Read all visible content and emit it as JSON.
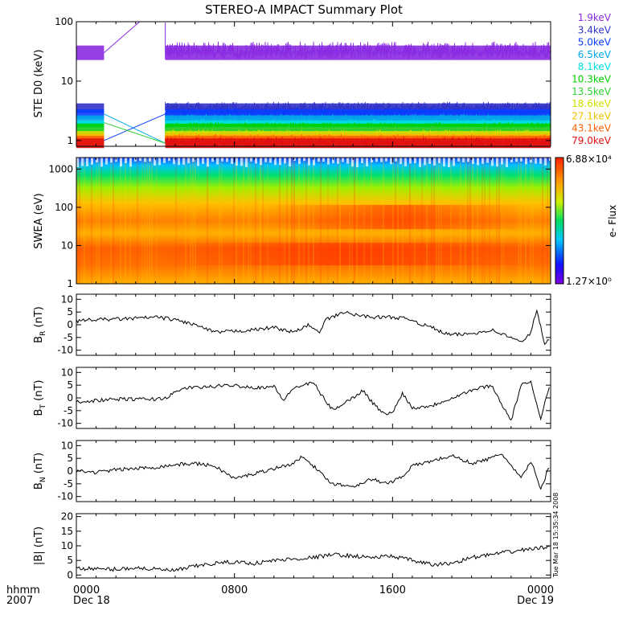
{
  "title": "STEREO-A IMPACT Summary Plot",
  "stamp": "Tue Mar 18 15:35:34 2008",
  "colors": {
    "trace": "#000000",
    "energy": [
      "#8a2be2",
      "#3232c8",
      "#0a3cff",
      "#00a8e8",
      "#00e0e0",
      "#00d000",
      "#30d030",
      "#d0e000",
      "#f0c000",
      "#ff6000",
      "#e01010"
    ]
  },
  "time_axis": {
    "hhmm_label": "hhmm",
    "year_label": "2007",
    "ticks": [
      {
        "t": 0,
        "label": "0000",
        "date": "Dec 18"
      },
      {
        "t": 8,
        "label": "0800",
        "date": ""
      },
      {
        "t": 16,
        "label": "1600",
        "date": ""
      },
      {
        "t": 24,
        "label": "0000",
        "date": "Dec 19"
      }
    ],
    "range_hours": [
      0,
      24
    ]
  },
  "chart_data": [
    {
      "type": "line",
      "panel": "ste",
      "ylabel": "STE D0 (keV)",
      "yscale": "log",
      "ylim": [
        0.8,
        100
      ],
      "yticks": [
        {
          "v": 1,
          "label": "1"
        },
        {
          "v": 10,
          "label": "10"
        },
        {
          "v": 100,
          "label": "100"
        }
      ],
      "legend": [
        {
          "label": "1.9keV",
          "color": "#8a2be2"
        },
        {
          "label": "3.4keV",
          "color": "#3232c8"
        },
        {
          "label": "5.0keV",
          "color": "#0a3cff"
        },
        {
          "label": "6.5keV",
          "color": "#00a8e8"
        },
        {
          "label": "8.1keV",
          "color": "#00e0e0"
        },
        {
          "label": "10.3keV",
          "color": "#00d000"
        },
        {
          "label": "13.5keV",
          "color": "#30d030"
        },
        {
          "label": "18.6keV",
          "color": "#d0e000"
        },
        {
          "label": "27.1keV",
          "color": "#f0c000"
        },
        {
          "label": "43.1keV",
          "color": "#ff6000"
        },
        {
          "label": "79.0keV",
          "color": "#e01010"
        }
      ],
      "gap_hours": [
        1.4,
        4.5
      ],
      "band_levels": [
        30,
        3.5,
        2.8,
        2.2,
        1.8,
        1.6,
        1.4,
        1.2,
        1.1,
        1.0,
        0.9
      ]
    },
    {
      "type": "heatmap",
      "panel": "swea",
      "ylabel": "SWEA (eV)",
      "yscale": "log",
      "ylim": [
        1,
        2000
      ],
      "yticks": [
        {
          "v": 1,
          "label": "1"
        },
        {
          "v": 10,
          "label": "10"
        },
        {
          "v": 100,
          "label": "100"
        },
        {
          "v": 1000,
          "label": "1000"
        }
      ],
      "colorbar": {
        "label": "e- Flux",
        "max_label": "6.88×10⁴",
        "min_label": "1.27×10⁰"
      }
    },
    {
      "type": "line",
      "panel": "br",
      "ylabel_main": "B",
      "ylabel_sub": "R",
      "ylabel_unit": " (nT)",
      "ylim": [
        -12,
        12
      ],
      "yticks": [
        {
          "v": -10,
          "label": "-10"
        },
        {
          "v": -5,
          "label": "-5"
        },
        {
          "v": 0,
          "label": "0"
        },
        {
          "v": 5,
          "label": "5"
        },
        {
          "v": 10,
          "label": "10"
        }
      ],
      "points": [
        [
          0,
          1.5
        ],
        [
          1,
          2
        ],
        [
          2,
          2.2
        ],
        [
          3,
          2.5
        ],
        [
          4,
          3
        ],
        [
          5,
          2
        ],
        [
          6,
          0
        ],
        [
          7,
          -3
        ],
        [
          8,
          -2.5
        ],
        [
          9,
          -2
        ],
        [
          10,
          -1
        ],
        [
          11,
          -3
        ],
        [
          11.8,
          0
        ],
        [
          12.3,
          -3.5
        ],
        [
          12.6,
          2
        ],
        [
          13,
          3
        ],
        [
          13.5,
          5
        ],
        [
          14,
          4
        ],
        [
          15,
          3
        ],
        [
          16,
          3
        ],
        [
          17,
          2
        ],
        [
          17.5,
          0
        ],
        [
          18,
          -1
        ],
        [
          18.5,
          -3
        ],
        [
          19,
          -4
        ],
        [
          20,
          -3.5
        ],
        [
          21,
          -2
        ],
        [
          22,
          -5
        ],
        [
          22.5,
          -7
        ],
        [
          23,
          -3
        ],
        [
          23.3,
          6
        ],
        [
          23.7,
          -8
        ],
        [
          24,
          -5
        ]
      ]
    },
    {
      "type": "line",
      "panel": "bt",
      "ylabel_main": "B",
      "ylabel_sub": "T",
      "ylabel_unit": " (nT)",
      "ylim": [
        -12,
        12
      ],
      "yticks": [
        {
          "v": -10,
          "label": "-10"
        },
        {
          "v": -5,
          "label": "-5"
        },
        {
          "v": 0,
          "label": "0"
        },
        {
          "v": 5,
          "label": "5"
        },
        {
          "v": 10,
          "label": "10"
        }
      ],
      "points": [
        [
          0,
          -1.5
        ],
        [
          1,
          -1
        ],
        [
          2,
          -0.5
        ],
        [
          3,
          -0.5
        ],
        [
          4,
          -0.5
        ],
        [
          4.5,
          0
        ],
        [
          5,
          2
        ],
        [
          5.5,
          4
        ],
        [
          6,
          4
        ],
        [
          7,
          4.5
        ],
        [
          8,
          5
        ],
        [
          9,
          4
        ],
        [
          10,
          4.5
        ],
        [
          10.5,
          -1
        ],
        [
          11,
          4
        ],
        [
          12,
          6
        ],
        [
          12.5,
          0
        ],
        [
          13,
          -5
        ],
        [
          13.5,
          -2
        ],
        [
          14,
          0
        ],
        [
          14.5,
          3
        ],
        [
          15,
          -2
        ],
        [
          15.5,
          -6
        ],
        [
          16,
          -6
        ],
        [
          16.5,
          2
        ],
        [
          17,
          -4
        ],
        [
          18,
          -3
        ],
        [
          19,
          0
        ],
        [
          20,
          3
        ],
        [
          21,
          5
        ],
        [
          21.5,
          -2
        ],
        [
          22,
          -9
        ],
        [
          22.5,
          5
        ],
        [
          23,
          6
        ],
        [
          23.5,
          -8
        ],
        [
          24,
          7
        ]
      ]
    },
    {
      "type": "line",
      "panel": "bn",
      "ylabel_main": "B",
      "ylabel_sub": "N",
      "ylabel_unit": " (nT)",
      "ylim": [
        -12,
        12
      ],
      "yticks": [
        {
          "v": -10,
          "label": "-10"
        },
        {
          "v": -5,
          "label": "-5"
        },
        {
          "v": 0,
          "label": "0"
        },
        {
          "v": 5,
          "label": "5"
        },
        {
          "v": 10,
          "label": "10"
        }
      ],
      "points": [
        [
          0,
          0
        ],
        [
          1,
          -0.5
        ],
        [
          2,
          0.5
        ],
        [
          3,
          1
        ],
        [
          4,
          1.5
        ],
        [
          5,
          2.5
        ],
        [
          6,
          3
        ],
        [
          7,
          2
        ],
        [
          8,
          -3
        ],
        [
          9,
          -1
        ],
        [
          10,
          1
        ],
        [
          11,
          3
        ],
        [
          11.5,
          6
        ],
        [
          12,
          2
        ],
        [
          12.5,
          -2
        ],
        [
          13,
          -5
        ],
        [
          14,
          -6
        ],
        [
          15,
          -3
        ],
        [
          15.5,
          -5
        ],
        [
          16,
          -4
        ],
        [
          16.5,
          -2
        ],
        [
          17,
          2
        ],
        [
          18,
          4
        ],
        [
          19,
          6
        ],
        [
          20,
          3
        ],
        [
          21,
          5
        ],
        [
          21.5,
          7
        ],
        [
          22,
          2
        ],
        [
          22.5,
          -3
        ],
        [
          23,
          4
        ],
        [
          23.5,
          -7
        ],
        [
          24,
          3
        ]
      ]
    },
    {
      "type": "line",
      "panel": "bmag",
      "ylabel": "|B| (nT)",
      "ylim": [
        -1,
        21
      ],
      "yticks": [
        {
          "v": 0,
          "label": "0"
        },
        {
          "v": 5,
          "label": "5"
        },
        {
          "v": 10,
          "label": "10"
        },
        {
          "v": 15,
          "label": "15"
        },
        {
          "v": 20,
          "label": "20"
        }
      ],
      "points": [
        [
          0,
          2.5
        ],
        [
          1,
          2
        ],
        [
          2,
          2
        ],
        [
          3,
          2.5
        ],
        [
          4,
          2
        ],
        [
          5,
          1.5
        ],
        [
          6,
          3
        ],
        [
          7,
          4
        ],
        [
          8,
          4.5
        ],
        [
          9,
          4
        ],
        [
          10,
          5
        ],
        [
          11,
          5.5
        ],
        [
          12,
          6
        ],
        [
          13,
          7
        ],
        [
          14,
          6.5
        ],
        [
          15,
          6
        ],
        [
          16,
          6.5
        ],
        [
          17,
          5
        ],
        [
          18,
          3.5
        ],
        [
          19,
          4
        ],
        [
          20,
          6
        ],
        [
          21,
          7
        ],
        [
          22,
          8
        ],
        [
          23,
          9
        ],
        [
          24,
          9.5
        ]
      ]
    }
  ]
}
